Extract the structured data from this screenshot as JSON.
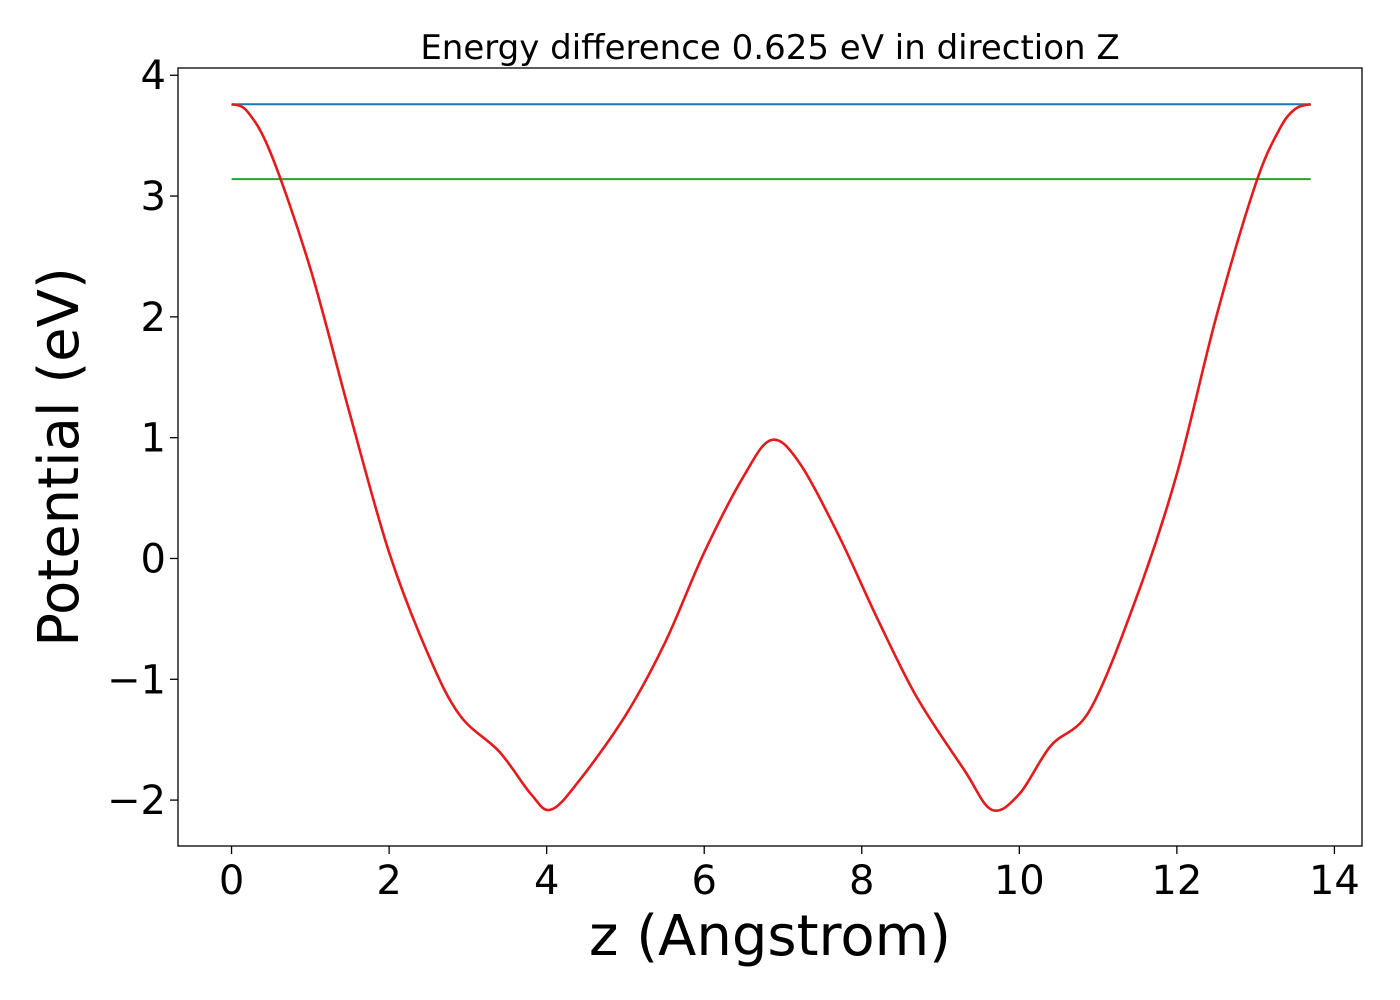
{
  "chart_data": {
    "type": "line",
    "title": "Energy difference 0.625 eV in direction Z",
    "xlabel": "z (Angstrom)",
    "ylabel": "Potential (eV)",
    "xlim": [
      -0.68,
      14.35
    ],
    "ylim": [
      -2.38,
      4.06
    ],
    "xticks": [
      0,
      2,
      4,
      6,
      8,
      10,
      12,
      14
    ],
    "yticks": [
      -2,
      -1,
      0,
      1,
      2,
      3,
      4
    ],
    "xtick_labels": [
      "0",
      "2",
      "4",
      "6",
      "8",
      "10",
      "12",
      "14"
    ],
    "ytick_labels": [
      "−2",
      "−1",
      "0",
      "1",
      "2",
      "3",
      "4"
    ],
    "grid": false,
    "legend": "none",
    "series": [
      {
        "color": "#e41a1c",
        "x": [
          0,
          0.2,
          0.5,
          1.0,
          1.5,
          2.0,
          2.5,
          2.9,
          3.4,
          3.8,
          4.05,
          4.4,
          5.0,
          5.5,
          6.0,
          6.5,
          6.85,
          7.2,
          7.7,
          8.2,
          8.7,
          9.3,
          9.65,
          10.0,
          10.4,
          10.9,
          11.5,
          12.0,
          12.5,
          13.0,
          13.3,
          13.5,
          13.7
        ],
        "y": [
          3.76,
          3.7,
          3.35,
          2.4,
          1.2,
          0.05,
          -0.8,
          -1.3,
          -1.6,
          -1.95,
          -2.08,
          -1.85,
          -1.3,
          -0.7,
          0.05,
          0.68,
          0.98,
          0.8,
          0.2,
          -0.5,
          -1.15,
          -1.75,
          -2.08,
          -1.95,
          -1.55,
          -1.25,
          -0.3,
          0.7,
          2.0,
          3.1,
          3.55,
          3.72,
          3.76
        ]
      },
      {
        "color": "#1f77b4",
        "x": [
          0,
          13.7
        ],
        "y": [
          3.76,
          3.76
        ]
      },
      {
        "color": "#2ca02c",
        "x": [
          0,
          13.7
        ],
        "y": [
          3.14,
          3.14
        ]
      }
    ]
  }
}
